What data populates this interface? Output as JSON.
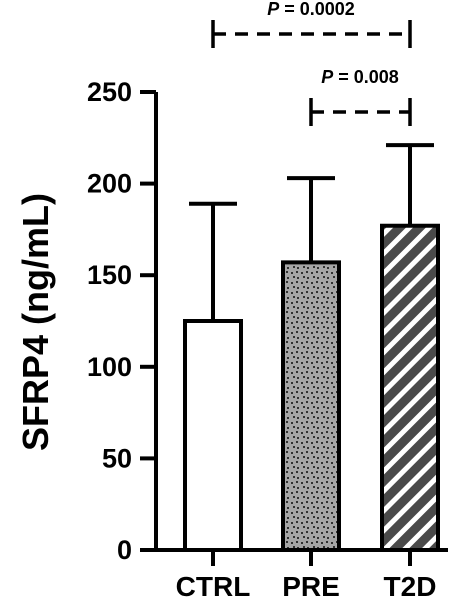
{
  "chart_data": {
    "type": "bar",
    "categories": [
      "CTRL",
      "PRE",
      "T2D"
    ],
    "values": [
      125,
      157,
      177
    ],
    "error_upper": [
      189,
      203,
      221
    ],
    "ylabel": "SFRP4 (ng/mL)",
    "xlabel": "",
    "ylim": [
      0,
      250
    ],
    "yticks": [
      0,
      50,
      100,
      150,
      200,
      250
    ],
    "ytick_labels": [
      "0",
      "50",
      "100",
      "150",
      "200",
      "250"
    ],
    "grid": false,
    "bar_fills": [
      "white",
      "dotted-grey",
      "hatched-diagonal"
    ],
    "colors": {
      "bar_outline": "#000000",
      "pre_fill": "#a6a6a6",
      "t2d_fill": "#4a4a4a",
      "t2d_stripe": "#ffffff"
    },
    "annotations": [
      {
        "from": "CTRL",
        "to": "T2D",
        "p_symbol": "P",
        "p_text": " = 0.0002"
      },
      {
        "from": "PRE",
        "to": "T2D",
        "p_symbol": "P",
        "p_text": " = 0.008"
      }
    ]
  }
}
